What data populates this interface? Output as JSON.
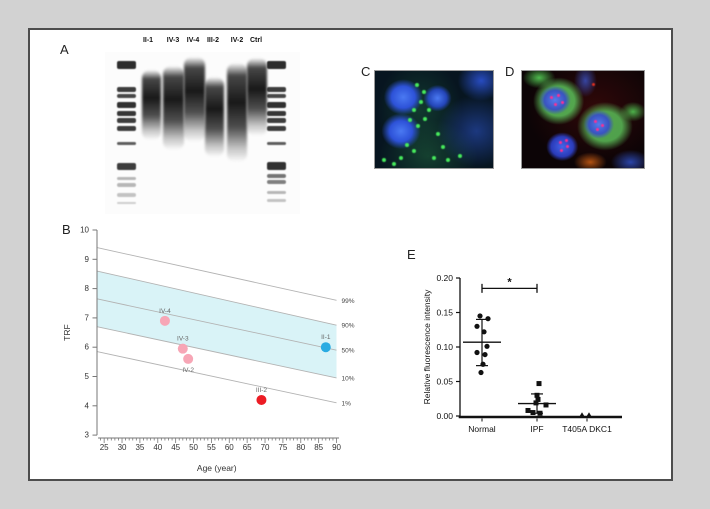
{
  "figure": {
    "panelA": {
      "label": "A",
      "lanes": [
        "II-1",
        "IV-3",
        "IV-4",
        "III-2",
        "IV-2",
        "Ctrl"
      ]
    },
    "panelB": {
      "label": "B",
      "chart_data": {
        "type": "scatter",
        "xlabel": "Age (year)",
        "ylabel": "TRF",
        "xlim": [
          23,
          91
        ],
        "ylim": [
          3,
          10
        ],
        "x_ticks": [
          25,
          30,
          35,
          40,
          45,
          50,
          55,
          60,
          65,
          70,
          75,
          80,
          85,
          90
        ],
        "y_ticks": [
          3,
          4,
          5,
          6,
          7,
          8,
          9,
          10
        ],
        "percentile_lines": [
          {
            "label": "99%",
            "x": [
              23,
              90
            ],
            "y": [
              9.4,
              7.6
            ]
          },
          {
            "label": "90%",
            "x": [
              23,
              90
            ],
            "y": [
              8.6,
              6.75
            ]
          },
          {
            "label": "50%",
            "x": [
              23,
              90
            ],
            "y": [
              7.65,
              5.9
            ]
          },
          {
            "label": "10%",
            "x": [
              23,
              90
            ],
            "y": [
              6.7,
              4.95
            ]
          },
          {
            "label": "1%",
            "x": [
              23,
              90
            ],
            "y": [
              5.85,
              4.1
            ]
          }
        ],
        "band_between": [
          "90%",
          "10%"
        ],
        "band_color": "#d9f3f7",
        "line_color": "#b3b3b3",
        "points": [
          {
            "label": "IV-4",
            "x": 42,
            "y": 6.9,
            "color": "#f7a6b6",
            "label_pos": "above"
          },
          {
            "label": "IV-3",
            "x": 47,
            "y": 5.95,
            "color": "#f7a6b6",
            "label_pos": "above"
          },
          {
            "label": "IV-2",
            "x": 48.5,
            "y": 5.6,
            "color": "#f7a6b6",
            "label_pos": "below"
          },
          {
            "label": "III-2",
            "x": 69,
            "y": 4.2,
            "color": "#ec1c24",
            "label_pos": "above"
          },
          {
            "label": "II-1",
            "x": 87,
            "y": 6.0,
            "color": "#29abe2",
            "label_pos": "above"
          }
        ]
      }
    },
    "panelC": {
      "label": "C"
    },
    "panelD": {
      "label": "D"
    },
    "panelE": {
      "label": "E",
      "chart_data": {
        "type": "scatter",
        "ylabel": "Relative fluorescence intensity",
        "ylim": [
          0,
          0.2
        ],
        "y_ticks": [
          "0.00",
          "0.05",
          "0.10",
          "0.15",
          "0.20"
        ],
        "marker_color": "#111111",
        "groups": [
          {
            "label": "Normal",
            "marker": "circle",
            "mean": 0.107,
            "err_low": 0.073,
            "err_high": 0.14,
            "points": [
              [
                -2,
                0.145
              ],
              [
                6,
                0.141
              ],
              [
                -5,
                0.13
              ],
              [
                2,
                0.122
              ],
              [
                5,
                0.101
              ],
              [
                -5,
                0.092
              ],
              [
                3,
                0.089
              ],
              [
                1,
                0.075
              ],
              [
                -1,
                0.063
              ]
            ]
          },
          {
            "label": "IPF",
            "marker": "square",
            "mean": 0.018,
            "err_low": 0.004,
            "err_high": 0.032,
            "points": [
              [
                2,
                0.047
              ],
              [
                0,
                0.03
              ],
              [
                1,
                0.024
              ],
              [
                -1,
                0.019
              ],
              [
                9,
                0.016
              ],
              [
                -9,
                0.008
              ],
              [
                -4,
                0.005
              ],
              [
                3,
                0.004
              ]
            ]
          },
          {
            "label": "T405A DKC1",
            "marker": "triangle",
            "points": [
              [
                -5,
                0.001
              ],
              [
                2,
                0.001
              ]
            ]
          }
        ],
        "significance": {
          "from": "Normal",
          "to": "IPF",
          "y": 0.185,
          "symbol": "*"
        }
      }
    }
  }
}
